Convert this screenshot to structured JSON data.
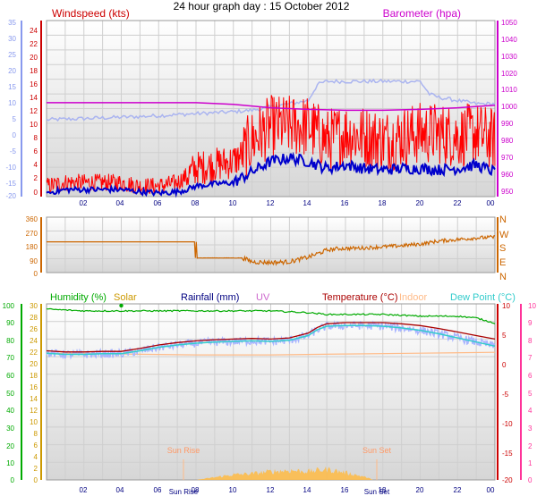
{
  "title": "24 hour graph day : 15 October 2012",
  "colors": {
    "windspeed_avg": "#0000cc",
    "windspeed_gust": "#ff0000",
    "windspeed_axis": "#cc0000",
    "barometer": "#cc00cc",
    "temperature_axis": "#cc0000",
    "wind_dir": "#cc6600",
    "humidity": "#00aa00",
    "solar": "#cc9900",
    "rainfall": "#000080",
    "uv": "#cc66cc",
    "temperature": "#aa0000",
    "indoor": "#ffbb88",
    "dewpoint": "#33cccc",
    "left_blue_axis": "#8899ee",
    "pink_axis": "#ff3399",
    "solar_fill": "#ffbb44"
  },
  "chart_data": [
    {
      "type": "line",
      "name": "wind-baro",
      "x_ticks": [
        "02",
        "04",
        "06",
        "08",
        "10",
        "12",
        "14",
        "16",
        "18",
        "20",
        "22",
        "00"
      ],
      "left_outer_axis": {
        "ylim": [
          -20,
          35
        ],
        "ticks": [
          "35",
          "30",
          "25",
          "20",
          "15",
          "10",
          "5",
          "0",
          "-5",
          "-10",
          "-15",
          "-20"
        ]
      },
      "left_axis": {
        "label": "Windspeed (kts)",
        "ylim": [
          0,
          25
        ],
        "ticks": [
          "24",
          "22",
          "20",
          "18",
          "16",
          "14",
          "12",
          "10",
          "8",
          "6",
          "4",
          "2",
          "0"
        ]
      },
      "right_axis": {
        "label": "Barometer (hpa)",
        "ylim": [
          947,
          1052
        ],
        "ticks": [
          "1050",
          "1040",
          "1030",
          "1020",
          "1010",
          "1000",
          "990",
          "980",
          "970",
          "960",
          "950"
        ]
      },
      "series": [
        {
          "axis": "left_outer",
          "x": [
            0,
            5,
            10,
            11,
            12,
            13,
            14,
            14.5,
            15,
            17,
            19,
            20,
            20.5,
            21,
            22,
            23,
            24
          ],
          "y": [
            4,
            5,
            6.5,
            7,
            8,
            9,
            10,
            15,
            16,
            16,
            16,
            16,
            12,
            11,
            10,
            9,
            9
          ]
        },
        {
          "axis": "left",
          "x": [
            0,
            1,
            2,
            3,
            4,
            5,
            6,
            7,
            7.5,
            8,
            9,
            10,
            11,
            12,
            13,
            14,
            15,
            16,
            17,
            18,
            19,
            20,
            21,
            22,
            23,
            24
          ],
          "y": [
            0.5,
            1,
            1,
            1,
            1,
            0.7,
            0.5,
            0.7,
            1,
            1.5,
            1.8,
            2,
            3.5,
            5,
            5.5,
            5,
            4,
            4.5,
            4,
            3.8,
            4,
            4,
            3.8,
            4,
            4.5,
            3.5
          ]
        },
        {
          "axis": "left",
          "x": [
            0,
            1,
            2,
            3,
            4,
            5,
            6,
            7,
            7.5,
            8,
            9,
            10,
            10.5,
            11,
            12,
            13,
            14,
            15,
            16,
            17,
            18,
            19,
            20,
            21,
            22,
            23,
            24
          ],
          "y": [
            1.5,
            2,
            2,
            2,
            2,
            1.5,
            1.5,
            2,
            3,
            4,
            4.5,
            5,
            6,
            8,
            10,
            10,
            10,
            8,
            9,
            8.5,
            8,
            8.5,
            9,
            9,
            8.5,
            9,
            8
          ]
        },
        {
          "axis": "right",
          "x": [
            0,
            2,
            4,
            6,
            8,
            10,
            12,
            14,
            16,
            18,
            20,
            22,
            24
          ],
          "y": [
            1003,
            1003,
            1003,
            1003,
            1003,
            1002,
            1000,
            999,
            998.5,
            998.5,
            999,
            1000,
            1001.5
          ]
        }
      ]
    },
    {
      "type": "line",
      "name": "wind-direction",
      "x_ticks": [
        "02",
        "04",
        "06",
        "08",
        "10",
        "12",
        "14",
        "16",
        "18",
        "20",
        "22",
        "00"
      ],
      "left_axis": {
        "ylim": [
          0,
          360
        ],
        "ticks": [
          "360",
          "270",
          "180",
          "90",
          "0"
        ]
      },
      "right_axis": {
        "ticks": [
          "N",
          "W",
          "S",
          "E",
          "N"
        ]
      },
      "series": [
        {
          "x": [
            0,
            6,
            7.9,
            8,
            10.5,
            11,
            12,
            13,
            14,
            15,
            15.5,
            17,
            19,
            20,
            21,
            22,
            23,
            24
          ],
          "y": [
            200,
            200,
            200,
            95,
            95,
            70,
            65,
            70,
            100,
            145,
            155,
            160,
            175,
            185,
            205,
            215,
            225,
            230
          ]
        }
      ]
    },
    {
      "type": "line",
      "name": "temp-humidity",
      "x_ticks": [
        "02",
        "04",
        "06",
        "08",
        "10",
        "12",
        "14",
        "16",
        "18",
        "20",
        "22",
        "00"
      ],
      "left_outer_axis": {
        "ylim": [
          0,
          100
        ],
        "ticks": [
          "100",
          "90",
          "80",
          "70",
          "60",
          "50",
          "40",
          "30",
          "20",
          "10",
          "0"
        ]
      },
      "left_axis": {
        "ylim": [
          0,
          30
        ],
        "ticks": [
          "30",
          "28",
          "26",
          "24",
          "22",
          "20",
          "18",
          "16",
          "14",
          "12",
          "10",
          "8",
          "6",
          "4",
          "2",
          "0"
        ]
      },
      "right_axis": {
        "ylim": [
          -20,
          10
        ],
        "ticks": [
          "10",
          "5",
          "0",
          "-5",
          "-10",
          "-15",
          "-20"
        ]
      },
      "right_outer_axis": {
        "ylim": [
          -20,
          10
        ],
        "ticks": [
          "10",
          "9",
          "8",
          "7",
          "6",
          "5",
          "4",
          "3",
          "2",
          "1",
          "0"
        ]
      },
      "legend": [
        "Humidity (%)",
        "Solar",
        "Rainfall (mm)",
        "UV",
        "Temperature (°C)",
        "Indoor",
        "Dew Point (°C)"
      ],
      "annotations": [
        "Sun Rise",
        "Sun Set",
        "Sun Rise",
        "Sun Set"
      ],
      "series": [
        {
          "name": "Humidity (%)",
          "x": [
            0,
            2,
            4,
            6,
            8,
            10,
            12,
            14,
            15,
            16,
            18,
            20,
            22,
            23,
            24
          ],
          "y": [
            97,
            96,
            96,
            96,
            96,
            96,
            96,
            95,
            94,
            94,
            94,
            93,
            93,
            92,
            89
          ]
        },
        {
          "name": "Indoor",
          "x": [
            0,
            4,
            8,
            12,
            16,
            20,
            24
          ],
          "y": [
            72,
            71.5,
            71,
            71,
            71.5,
            72,
            72.5
          ]
        },
        {
          "name": "Temperature (°C)",
          "x": [
            0,
            1,
            2,
            3,
            4,
            5,
            6,
            7,
            8,
            9,
            10,
            11,
            12,
            13,
            14,
            14.5,
            15,
            16,
            17,
            18,
            19,
            20,
            21,
            22,
            23,
            24
          ],
          "y": [
            2,
            1.8,
            1.8,
            1.9,
            1.9,
            2.4,
            3,
            3.4,
            3.7,
            3.9,
            4,
            4.1,
            4,
            4.2,
            5,
            6,
            6.6,
            6.8,
            6.8,
            6.8,
            6.6,
            6.3,
            5.8,
            5.2,
            4.6,
            4
          ]
        },
        {
          "name": "Dew Point (°C)",
          "x": [
            0,
            1,
            2,
            3,
            4,
            5,
            6,
            7,
            8,
            9,
            10,
            11,
            12,
            13,
            14,
            14.5,
            15,
            16,
            17,
            18,
            19,
            20,
            21,
            22,
            23,
            24
          ],
          "y": [
            1.6,
            1.4,
            1.4,
            1.5,
            1.5,
            2,
            2.6,
            3,
            3.3,
            3.5,
            3.6,
            3.7,
            3.6,
            3.8,
            4.6,
            5.6,
            6.2,
            6.3,
            6.3,
            6.2,
            5.9,
            5.5,
            4.9,
            4.2,
            3.5,
            2.8
          ]
        },
        {
          "name": "Solar",
          "x": [
            8,
            9,
            10,
            11,
            12,
            13,
            14,
            15,
            16,
            17,
            17.5
          ],
          "y": [
            0,
            0.5,
            1,
            1.2,
            1.6,
            1.8,
            1.6,
            2,
            1.4,
            0.6,
            0
          ]
        }
      ]
    }
  ]
}
